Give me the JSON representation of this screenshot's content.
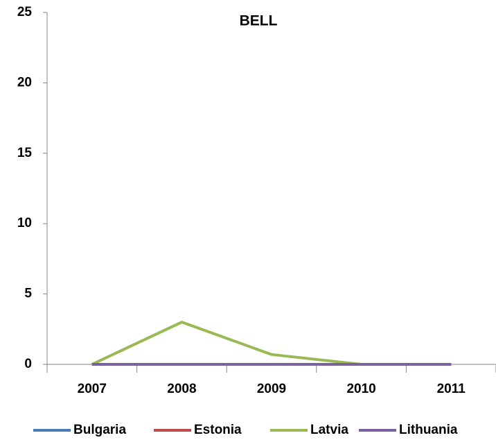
{
  "chart_data": {
    "type": "line",
    "title": "BELL",
    "categories": [
      "2007",
      "2008",
      "2009",
      "2010",
      "2011"
    ],
    "series": [
      {
        "name": "Bulgaria",
        "color": "#4a7ebb",
        "values": [
          0,
          0,
          0,
          0,
          0
        ]
      },
      {
        "name": "Estonia",
        "color": "#be4b48",
        "values": [
          0,
          0,
          0,
          0,
          0
        ]
      },
      {
        "name": "Latvia",
        "color": "#98b954",
        "values": [
          0,
          3,
          0.7,
          0,
          0
        ]
      },
      {
        "name": "Lithuania",
        "color": "#7d60a0",
        "values": [
          0,
          0,
          0,
          0,
          0
        ]
      }
    ],
    "ylim": [
      0,
      25
    ],
    "yticks": [
      0,
      5,
      10,
      15,
      20,
      25
    ],
    "legend": "bottom"
  }
}
